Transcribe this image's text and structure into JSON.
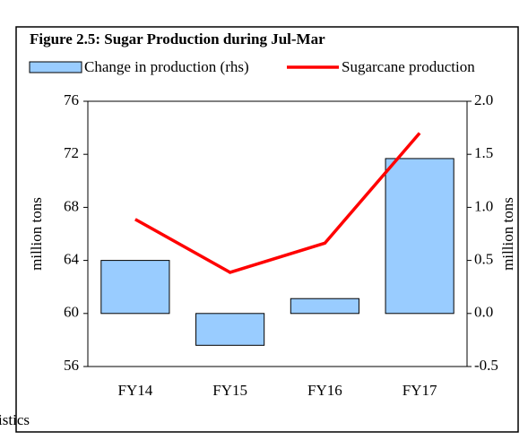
{
  "chart_data": {
    "type": "bar_line",
    "title": "Figure 2.5: Sugar Production  during Jul-Mar",
    "categories": [
      "FY14",
      "FY15",
      "FY16",
      "FY17"
    ],
    "series": [
      {
        "name": "Change in production (rhs)",
        "type": "bar",
        "axis": "y2",
        "color": "#99ccff",
        "values": [
          0.5,
          -0.3,
          0.14,
          1.46
        ]
      },
      {
        "name": "Sugarcane production",
        "type": "line",
        "axis": "y",
        "color": "#ff0000",
        "values": [
          67.1,
          63.1,
          65.3,
          73.6
        ]
      }
    ],
    "ylabel": "million tons",
    "y2label": "million tons",
    "ylim": [
      56,
      76
    ],
    "yticks": [
      56,
      60,
      64,
      68,
      72,
      76
    ],
    "y2lim": [
      -0.5,
      2.0
    ],
    "y2ticks": [
      -0.5,
      {
        "value": 0,
        "label": "0.0"
      },
      0.5,
      {
        "value": 1,
        "label": "1.0"
      },
      1.5,
      {
        "value": 2,
        "label": "2.0"
      }
    ],
    "source": "Data source: Pakistan Bureau of Statistics"
  }
}
